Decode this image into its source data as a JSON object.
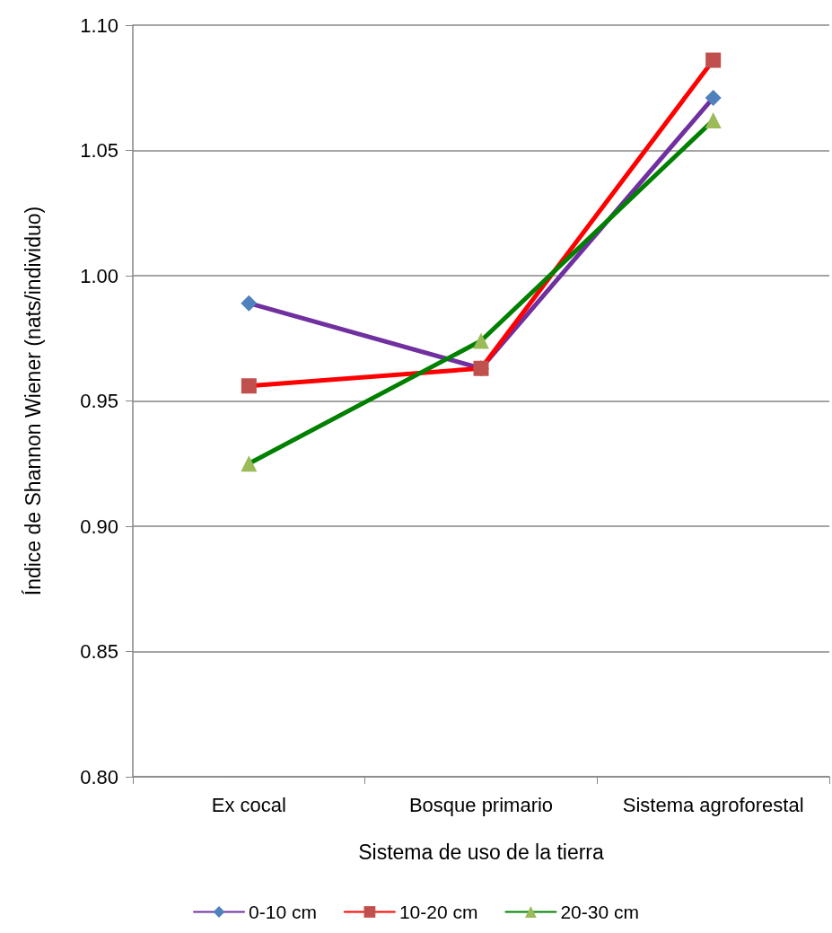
{
  "chart_data": {
    "type": "line",
    "xlabel": "Sistema de uso de la tierra",
    "ylabel": "Índice de Shannon Wiener (nats/individuo)",
    "categories": [
      "Ex cocal",
      "Bosque primario",
      "Sistema agroforestal"
    ],
    "series": [
      {
        "name": "0-10 cm",
        "color": "#7030a0",
        "colors": [
          "#4f81bd",
          "#4f81bd",
          "#4f81bd"
        ],
        "marker": "diamond",
        "values": [
          0.989,
          0.963,
          1.071
        ]
      },
      {
        "name": "10-20 cm",
        "color": "#ff0000",
        "colors": [
          "#c0504d",
          "#c0504d",
          "#c0504d"
        ],
        "marker": "square",
        "values": [
          0.956,
          0.963,
          1.086
        ]
      },
      {
        "name": "20-30 cm",
        "color": "#008000",
        "colors": [
          "#9bbb59",
          "#9bbb59",
          "#9bbb59"
        ],
        "marker": "triangle",
        "values": [
          0.925,
          0.974,
          1.062
        ]
      }
    ],
    "ylim": [
      0.8,
      1.1
    ],
    "yticks": [
      {
        "value": 0.8,
        "label": "0.80"
      },
      {
        "value": 0.85,
        "label": "0.85"
      },
      {
        "value": 0.9,
        "label": "0.90"
      },
      {
        "value": 0.95,
        "label": "0.95"
      },
      {
        "value": 1.0,
        "label": "1.00"
      },
      {
        "value": 1.05,
        "label": "1.05"
      },
      {
        "value": 1.1,
        "label": "1.10"
      }
    ],
    "grid": "y",
    "legend": "bottom",
    "line_style": "solid"
  }
}
